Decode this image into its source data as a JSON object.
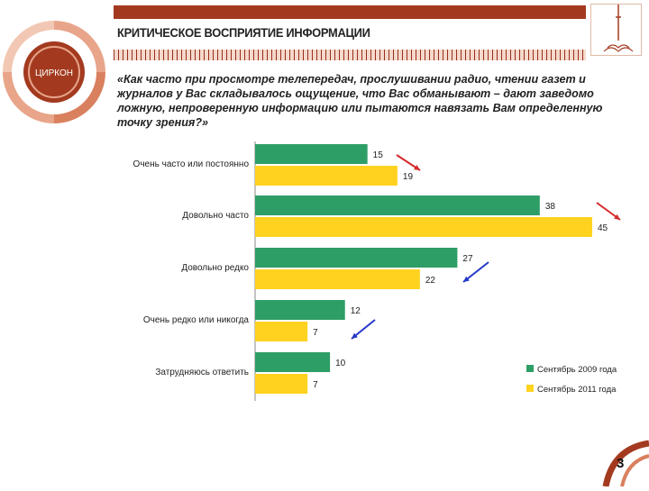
{
  "slide": {
    "title": "КРИТИЧЕСКОЕ ВОСПРИЯТИЕ ИНФОРМАЦИИ",
    "question": "«Как часто при просмотре телепередач, прослушивании радио, чтении газет и журналов у Вас складывалось ощущение, что Вас обманывают – дают заведомо ложную, непроверенную информацию или пытаются навязать Вам определенную точку зрения?»",
    "logo_text": "ЦИРКОН",
    "page_number": "3"
  },
  "colors": {
    "accent": "#a33a1f",
    "series_2009": "#2e9e67",
    "series_2011": "#ffd21f",
    "arrow_up": "#d42a2a",
    "arrow_down": "#2438c6"
  },
  "chart_data": {
    "type": "bar",
    "orientation": "horizontal",
    "categories": [
      "Очень часто или постоянно",
      "Довольно часто",
      "Довольно редко",
      "Очень редко или никогда",
      "Затрудняюсь ответить"
    ],
    "series": [
      {
        "name": "Сентябрь 2009 года",
        "values": [
          15,
          38,
          27,
          12,
          10
        ]
      },
      {
        "name": "Сентябрь 2011 года",
        "values": [
          19,
          45,
          22,
          7,
          7
        ]
      }
    ],
    "xlim": [
      0,
      45
    ],
    "legend_position": "bottom-right",
    "grid": false,
    "annotations": [
      {
        "category": "Очень часто или постоянно",
        "arrow": "down-right",
        "color": "red"
      },
      {
        "category": "Довольно часто",
        "arrow": "down-right",
        "color": "red"
      },
      {
        "category": "Довольно редко",
        "arrow": "down-left",
        "color": "blue"
      },
      {
        "category": "Очень редко или никогда",
        "arrow": "down-left",
        "color": "blue"
      }
    ]
  }
}
